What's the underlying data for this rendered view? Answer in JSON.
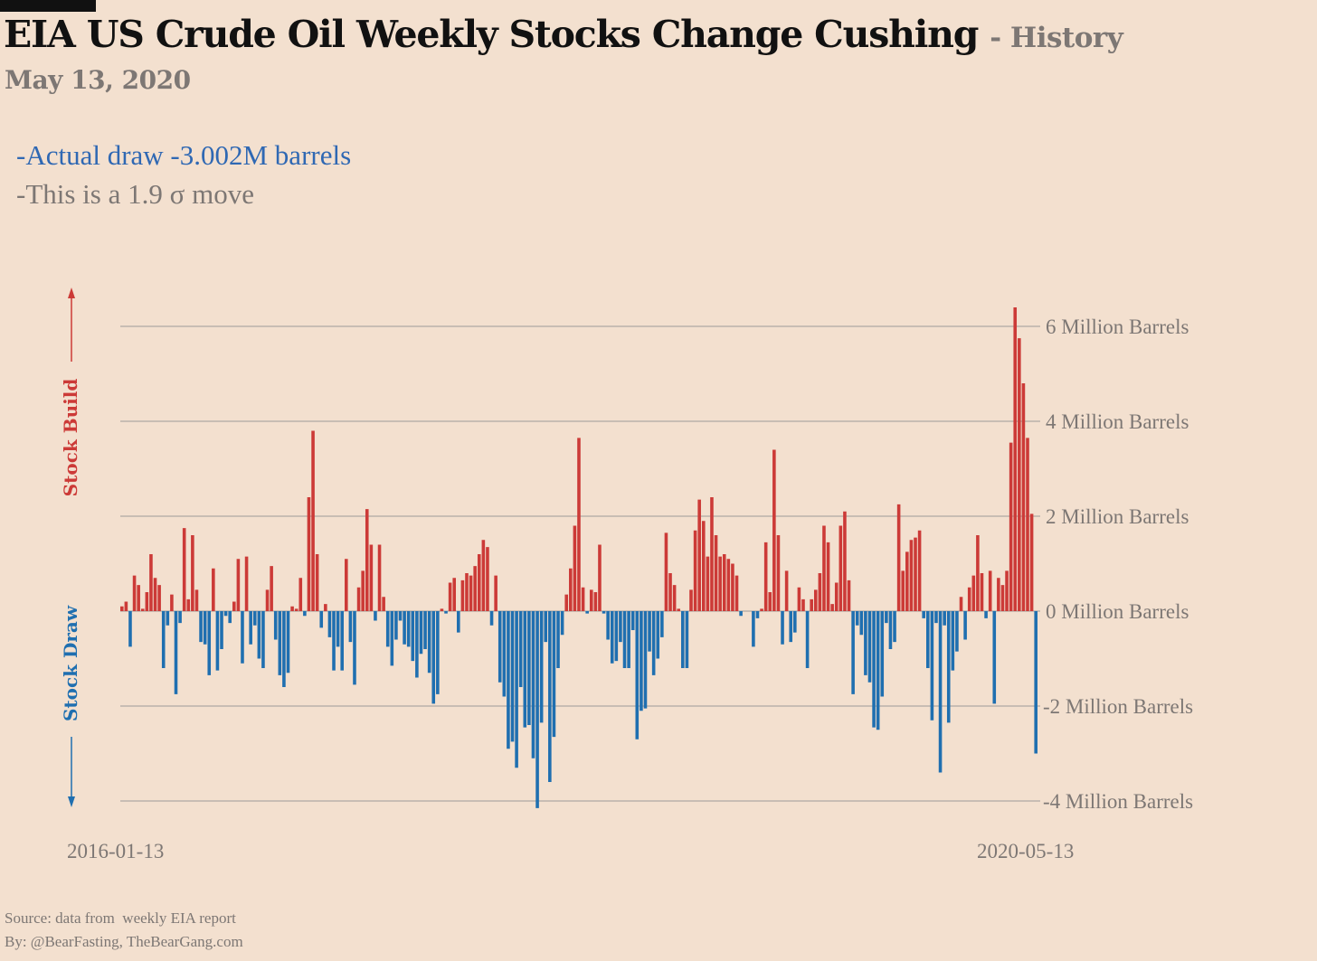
{
  "header": {
    "title": "EIA US Crude Oil Weekly Stocks Change Cushing",
    "title_suffix": "- History",
    "date": "May 13, 2020"
  },
  "notes": {
    "actual": "-Actual draw -3.002M barrels",
    "sigma": "-This is a 1.9 σ move"
  },
  "footer": {
    "source": "Source: data from  weekly EIA report",
    "by": "By: @BearFasting, TheBearGang.com"
  },
  "colors": {
    "build": "#cc3a37",
    "draw": "#1f6fb0",
    "grid": "#9c9a98",
    "background": "#f3e0cf"
  },
  "chart_data": {
    "type": "bar",
    "ylabel_up": "Stock Build",
    "ylabel_down": "Stock Draw",
    "ylim": [
      -4.2,
      6.4
    ],
    "yticks": [
      {
        "value": 6,
        "label": "6 Million Barrels"
      },
      {
        "value": 4,
        "label": "4 Million Barrels"
      },
      {
        "value": 2,
        "label": "2 Million Barrels"
      },
      {
        "value": 0,
        "label": "0 Million Barrels"
      },
      {
        "value": -2,
        "label": "-2 Million Barrels"
      },
      {
        "value": -4,
        "label": "-4 Million Barrels"
      }
    ],
    "x_start_label": "2016-01-13",
    "x_end_label": "2020-05-13",
    "grid": true,
    "values": [
      0.1,
      0.2,
      -0.75,
      0.75,
      0.55,
      0.05,
      0.4,
      1.2,
      0.7,
      0.55,
      -1.2,
      -0.3,
      0.35,
      -1.75,
      -0.25,
      1.75,
      0.25,
      1.6,
      0.45,
      -0.65,
      -0.7,
      -1.35,
      0.9,
      -1.25,
      -0.8,
      -0.1,
      -0.25,
      0.2,
      1.1,
      -1.1,
      1.15,
      -0.7,
      -0.3,
      -1.0,
      -1.2,
      0.45,
      0.95,
      -0.6,
      -1.35,
      -1.6,
      -1.3,
      0.1,
      0.05,
      0.7,
      -0.1,
      2.4,
      3.8,
      1.2,
      -0.35,
      0.15,
      -0.55,
      -1.25,
      -0.75,
      -1.25,
      1.1,
      -0.65,
      -1.55,
      0.5,
      0.85,
      2.15,
      1.4,
      -0.2,
      1.4,
      0.3,
      -0.75,
      -1.15,
      -0.6,
      -0.2,
      -0.7,
      -0.75,
      -1.05,
      -1.4,
      -0.9,
      -0.8,
      -1.3,
      -1.95,
      -1.75,
      0.05,
      -0.05,
      0.6,
      0.7,
      -0.45,
      0.65,
      0.8,
      0.75,
      0.95,
      1.2,
      1.5,
      1.35,
      -0.3,
      0.75,
      -1.5,
      -1.8,
      -2.9,
      -2.75,
      -3.3,
      -1.6,
      -2.45,
      -2.4,
      -3.1,
      -4.15,
      -2.35,
      -0.65,
      -3.6,
      -2.65,
      -1.2,
      -0.5,
      0.35,
      0.9,
      1.8,
      3.65,
      0.5,
      -0.05,
      0.45,
      0.4,
      1.4,
      -0.05,
      -0.6,
      -1.1,
      -1.05,
      -0.65,
      -1.2,
      -1.2,
      -0.4,
      -2.7,
      -2.1,
      -2.05,
      -0.85,
      -1.35,
      -1.0,
      -0.55,
      1.65,
      0.8,
      0.55,
      0.05,
      -1.2,
      -1.2,
      0.45,
      1.7,
      2.35,
      1.9,
      1.15,
      2.4,
      1.6,
      1.15,
      1.2,
      1.1,
      1.0,
      0.75,
      -0.1,
      0.0,
      0.0,
      -0.75,
      -0.15,
      0.05,
      1.45,
      0.4,
      3.4,
      1.6,
      -0.7,
      0.85,
      -0.65,
      -0.45,
      0.5,
      0.25,
      -1.2,
      0.25,
      0.45,
      0.8,
      1.8,
      1.45,
      0.15,
      0.6,
      1.8,
      2.1,
      0.65,
      -1.75,
      -0.3,
      -0.5,
      -1.35,
      -1.5,
      -2.45,
      -2.5,
      -1.8,
      -0.25,
      -0.8,
      -0.65,
      2.25,
      0.85,
      1.25,
      1.5,
      1.55,
      1.7,
      -0.15,
      -1.2,
      -2.3,
      -0.25,
      -3.4,
      -0.3,
      -2.35,
      -1.25,
      -0.85,
      0.3,
      -0.6,
      0.5,
      0.75,
      1.6,
      0.8,
      -0.15,
      0.85,
      -1.95,
      0.7,
      0.55,
      0.85,
      3.55,
      6.4,
      5.75,
      4.8,
      3.65,
      2.05,
      -3.0
    ]
  }
}
